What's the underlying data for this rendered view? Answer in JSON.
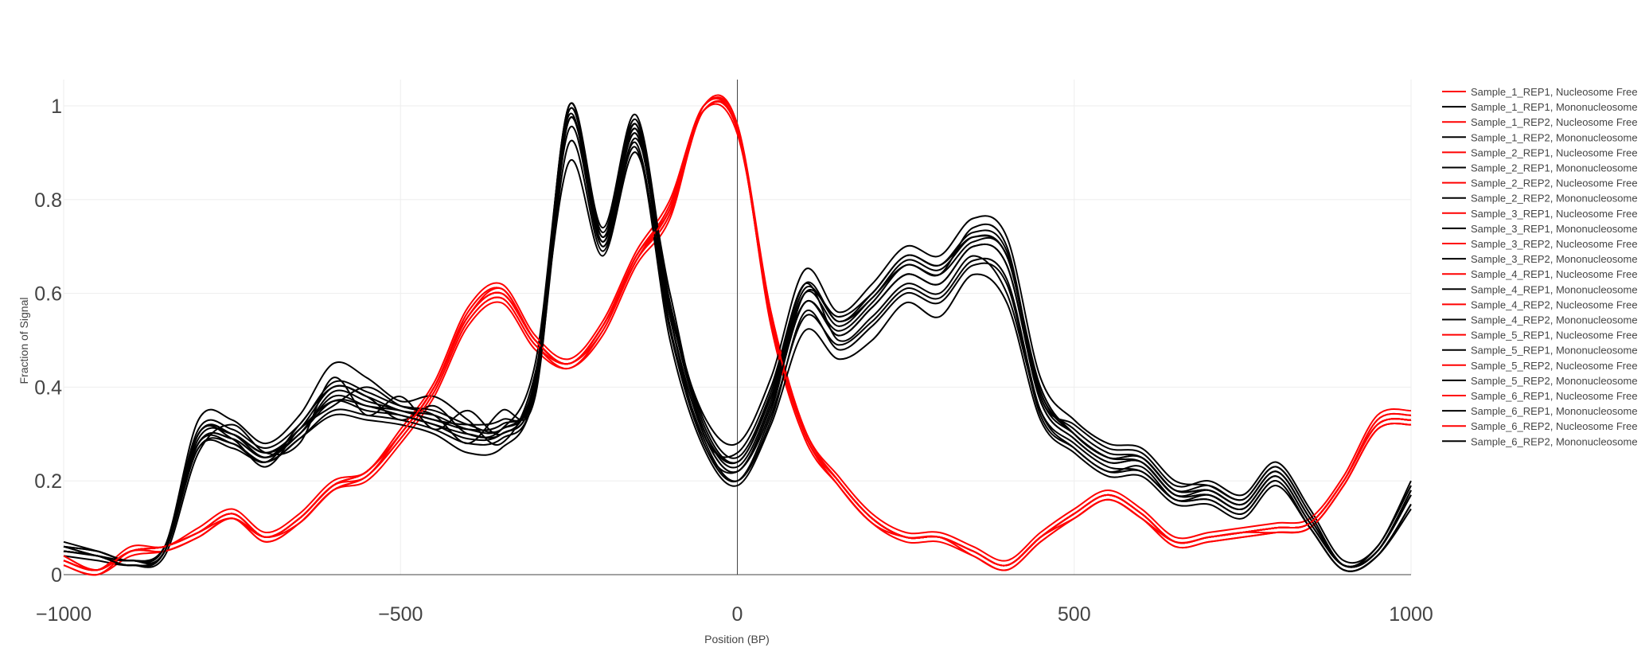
{
  "chart_data": {
    "type": "line",
    "xlabel": "Position (BP)",
    "ylabel": "Fraction of Signal",
    "xlim": [
      -1000,
      1000
    ],
    "ylim": [
      0,
      1.05
    ],
    "x_ticks": [
      -1000,
      -500,
      0,
      500,
      1000
    ],
    "x_tick_labels": [
      "−1000",
      "−500",
      "0",
      "500",
      "1000"
    ],
    "y_ticks": [
      0,
      0.2,
      0.4,
      0.6,
      0.8,
      1
    ],
    "y_tick_labels": [
      "0",
      "0.2",
      "0.4",
      "0.6",
      "0.8",
      "1"
    ],
    "grid": true,
    "zero_lines": true,
    "legend_position": "right",
    "colors": {
      "nucleosome_free": "#ff0000",
      "mononucleosome": "#000000",
      "grid": "#eeeeee",
      "zeroline": "#444444"
    },
    "x": [
      -1000,
      -950,
      -900,
      -850,
      -800,
      -750,
      -700,
      -650,
      -600,
      -550,
      -500,
      -450,
      -400,
      -350,
      -300,
      -250,
      -200,
      -150,
      -100,
      -50,
      0,
      50,
      100,
      150,
      200,
      250,
      300,
      350,
      400,
      450,
      500,
      550,
      600,
      650,
      700,
      750,
      800,
      850,
      900,
      950,
      1000
    ],
    "series": [
      {
        "name": "Sample_1_REP1, Nucleosome Free",
        "color": "#ff0000",
        "values": [
          0.03,
          0.01,
          0.05,
          0.06,
          0.09,
          0.13,
          0.08,
          0.12,
          0.19,
          0.22,
          0.3,
          0.4,
          0.55,
          0.6,
          0.5,
          0.45,
          0.53,
          0.68,
          0.78,
          0.99,
          0.95,
          0.55,
          0.3,
          0.2,
          0.12,
          0.08,
          0.08,
          0.05,
          0.02,
          0.08,
          0.13,
          0.17,
          0.13,
          0.07,
          0.08,
          0.09,
          0.1,
          0.11,
          0.2,
          0.32,
          0.33
        ]
      },
      {
        "name": "Sample_1_REP1, Mononucleosome",
        "color": "#000000",
        "values": [
          0.05,
          0.04,
          0.02,
          0.05,
          0.3,
          0.3,
          0.25,
          0.3,
          0.38,
          0.36,
          0.35,
          0.33,
          0.32,
          0.33,
          0.4,
          1.0,
          0.72,
          0.95,
          0.55,
          0.28,
          0.22,
          0.35,
          0.6,
          0.55,
          0.6,
          0.68,
          0.66,
          0.72,
          0.68,
          0.4,
          0.3,
          0.25,
          0.25,
          0.18,
          0.18,
          0.15,
          0.22,
          0.12,
          0.02,
          0.05,
          0.18
        ]
      },
      {
        "name": "Sample_1_REP2, Nucleosome Free",
        "color": "#ff0000",
        "values": [
          0.02,
          0.0,
          0.04,
          0.05,
          0.08,
          0.12,
          0.07,
          0.11,
          0.18,
          0.2,
          0.28,
          0.38,
          0.53,
          0.58,
          0.48,
          0.44,
          0.51,
          0.66,
          0.76,
          1.0,
          0.96,
          0.53,
          0.29,
          0.19,
          0.11,
          0.07,
          0.07,
          0.04,
          0.01,
          0.07,
          0.12,
          0.16,
          0.12,
          0.06,
          0.07,
          0.08,
          0.09,
          0.1,
          0.19,
          0.31,
          0.32
        ]
      },
      {
        "name": "Sample_1_REP2, Mononucleosome",
        "color": "#000000",
        "values": [
          0.06,
          0.05,
          0.03,
          0.06,
          0.28,
          0.28,
          0.24,
          0.32,
          0.4,
          0.38,
          0.33,
          0.36,
          0.3,
          0.31,
          0.45,
          0.98,
          0.7,
          0.93,
          0.6,
          0.3,
          0.26,
          0.4,
          0.62,
          0.5,
          0.55,
          0.62,
          0.6,
          0.68,
          0.6,
          0.35,
          0.28,
          0.23,
          0.22,
          0.16,
          0.16,
          0.13,
          0.2,
          0.1,
          0.01,
          0.04,
          0.15
        ]
      },
      {
        "name": "Sample_2_REP1, Nucleosome Free",
        "color": "#ff0000",
        "values": [
          0.04,
          0.01,
          0.05,
          0.06,
          0.09,
          0.13,
          0.08,
          0.12,
          0.19,
          0.22,
          0.3,
          0.4,
          0.56,
          0.61,
          0.5,
          0.45,
          0.53,
          0.67,
          0.79,
          0.99,
          0.94,
          0.56,
          0.31,
          0.2,
          0.12,
          0.08,
          0.08,
          0.05,
          0.02,
          0.08,
          0.13,
          0.17,
          0.13,
          0.07,
          0.08,
          0.09,
          0.1,
          0.11,
          0.2,
          0.33,
          0.34
        ]
      },
      {
        "name": "Sample_2_REP1, Mononucleosome",
        "color": "#000000",
        "values": [
          0.04,
          0.03,
          0.02,
          0.04,
          0.26,
          0.32,
          0.26,
          0.28,
          0.42,
          0.34,
          0.38,
          0.31,
          0.35,
          0.3,
          0.42,
          1.0,
          0.74,
          0.98,
          0.58,
          0.32,
          0.24,
          0.38,
          0.58,
          0.52,
          0.58,
          0.66,
          0.64,
          0.74,
          0.7,
          0.38,
          0.32,
          0.27,
          0.26,
          0.19,
          0.2,
          0.17,
          0.24,
          0.14,
          0.03,
          0.06,
          0.2
        ]
      },
      {
        "name": "Sample_2_REP2, Nucleosome Free",
        "color": "#ff0000",
        "values": [
          0.03,
          0.01,
          0.06,
          0.06,
          0.1,
          0.14,
          0.09,
          0.13,
          0.2,
          0.22,
          0.31,
          0.41,
          0.57,
          0.62,
          0.51,
          0.46,
          0.54,
          0.69,
          0.8,
          1.0,
          0.96,
          0.56,
          0.31,
          0.21,
          0.13,
          0.09,
          0.09,
          0.06,
          0.03,
          0.09,
          0.14,
          0.18,
          0.14,
          0.08,
          0.09,
          0.1,
          0.11,
          0.12,
          0.21,
          0.34,
          0.35
        ]
      },
      {
        "name": "Sample_2_REP2, Mononucleosome",
        "color": "#000000",
        "values": [
          0.05,
          0.04,
          0.03,
          0.05,
          0.3,
          0.29,
          0.23,
          0.31,
          0.36,
          0.4,
          0.36,
          0.34,
          0.28,
          0.35,
          0.38,
          0.97,
          0.71,
          0.96,
          0.53,
          0.29,
          0.2,
          0.33,
          0.56,
          0.48,
          0.53,
          0.6,
          0.58,
          0.66,
          0.62,
          0.34,
          0.27,
          0.22,
          0.23,
          0.16,
          0.17,
          0.14,
          0.21,
          0.11,
          0.02,
          0.05,
          0.17
        ]
      },
      {
        "name": "Sample_3_REP1, Nucleosome Free",
        "color": "#ff0000",
        "values": [
          0.03,
          0.01,
          0.05,
          0.05,
          0.08,
          0.12,
          0.08,
          0.11,
          0.18,
          0.21,
          0.29,
          0.39,
          0.54,
          0.59,
          0.49,
          0.45,
          0.52,
          0.67,
          0.77,
          0.99,
          0.95,
          0.54,
          0.3,
          0.2,
          0.12,
          0.08,
          0.08,
          0.05,
          0.02,
          0.08,
          0.12,
          0.16,
          0.12,
          0.07,
          0.08,
          0.09,
          0.09,
          0.1,
          0.19,
          0.31,
          0.32
        ]
      },
      {
        "name": "Sample_3_REP1, Mononucleosome",
        "color": "#000000",
        "values": [
          0.07,
          0.05,
          0.03,
          0.06,
          0.33,
          0.33,
          0.28,
          0.34,
          0.45,
          0.42,
          0.37,
          0.38,
          0.33,
          0.28,
          0.43,
          0.88,
          0.68,
          0.9,
          0.56,
          0.34,
          0.28,
          0.42,
          0.65,
          0.56,
          0.62,
          0.7,
          0.68,
          0.76,
          0.72,
          0.42,
          0.33,
          0.28,
          0.27,
          0.2,
          0.19,
          0.16,
          0.23,
          0.13,
          0.02,
          0.06,
          0.19
        ]
      },
      {
        "name": "Sample_3_REP2, Nucleosome Free",
        "color": "#ff0000",
        "values": [
          0.02,
          0.0,
          0.05,
          0.05,
          0.08,
          0.12,
          0.07,
          0.11,
          0.18,
          0.21,
          0.29,
          0.39,
          0.54,
          0.59,
          0.49,
          0.44,
          0.52,
          0.67,
          0.77,
          1.0,
          0.95,
          0.54,
          0.3,
          0.19,
          0.11,
          0.08,
          0.08,
          0.04,
          0.01,
          0.07,
          0.12,
          0.16,
          0.12,
          0.06,
          0.07,
          0.08,
          0.09,
          0.1,
          0.19,
          0.31,
          0.32
        ]
      },
      {
        "name": "Sample_3_REP2, Mononucleosome",
        "color": "#000000",
        "values": [
          0.05,
          0.04,
          0.02,
          0.05,
          0.27,
          0.27,
          0.24,
          0.29,
          0.34,
          0.33,
          0.32,
          0.3,
          0.26,
          0.27,
          0.39,
          0.92,
          0.69,
          0.91,
          0.5,
          0.27,
          0.19,
          0.32,
          0.52,
          0.46,
          0.5,
          0.58,
          0.55,
          0.64,
          0.58,
          0.33,
          0.26,
          0.21,
          0.21,
          0.15,
          0.15,
          0.12,
          0.19,
          0.1,
          0.01,
          0.04,
          0.14
        ]
      },
      {
        "name": "Sample_4_REP1, Nucleosome Free",
        "color": "#ff0000",
        "values": [
          0.04,
          0.01,
          0.05,
          0.06,
          0.09,
          0.13,
          0.08,
          0.12,
          0.19,
          0.22,
          0.3,
          0.4,
          0.55,
          0.6,
          0.5,
          0.45,
          0.53,
          0.68,
          0.78,
          0.99,
          0.95,
          0.55,
          0.3,
          0.2,
          0.12,
          0.08,
          0.08,
          0.05,
          0.02,
          0.08,
          0.13,
          0.17,
          0.13,
          0.07,
          0.08,
          0.09,
          0.1,
          0.11,
          0.2,
          0.32,
          0.33
        ]
      },
      {
        "name": "Sample_4_REP1, Mononucleosome",
        "color": "#000000",
        "values": [
          0.06,
          0.04,
          0.03,
          0.05,
          0.29,
          0.3,
          0.26,
          0.3,
          0.39,
          0.37,
          0.35,
          0.33,
          0.31,
          0.32,
          0.41,
          0.99,
          0.72,
          0.95,
          0.57,
          0.31,
          0.23,
          0.37,
          0.6,
          0.53,
          0.59,
          0.66,
          0.64,
          0.71,
          0.68,
          0.38,
          0.3,
          0.25,
          0.24,
          0.17,
          0.18,
          0.15,
          0.22,
          0.12,
          0.02,
          0.05,
          0.18
        ]
      },
      {
        "name": "Sample_4_REP2, Nucleosome Free",
        "color": "#ff0000",
        "values": [
          0.03,
          0.01,
          0.05,
          0.06,
          0.09,
          0.13,
          0.08,
          0.12,
          0.19,
          0.22,
          0.3,
          0.4,
          0.56,
          0.61,
          0.5,
          0.45,
          0.53,
          0.68,
          0.79,
          1.0,
          0.95,
          0.55,
          0.3,
          0.2,
          0.12,
          0.08,
          0.08,
          0.05,
          0.02,
          0.08,
          0.13,
          0.17,
          0.13,
          0.07,
          0.08,
          0.09,
          0.1,
          0.11,
          0.2,
          0.33,
          0.34
        ]
      },
      {
        "name": "Sample_4_REP2, Mononucleosome",
        "color": "#000000",
        "values": [
          0.05,
          0.04,
          0.02,
          0.05,
          0.28,
          0.29,
          0.25,
          0.31,
          0.37,
          0.35,
          0.34,
          0.32,
          0.29,
          0.3,
          0.4,
          0.97,
          0.71,
          0.94,
          0.55,
          0.3,
          0.22,
          0.36,
          0.58,
          0.51,
          0.57,
          0.64,
          0.62,
          0.7,
          0.66,
          0.37,
          0.29,
          0.24,
          0.24,
          0.17,
          0.17,
          0.14,
          0.21,
          0.11,
          0.02,
          0.05,
          0.17
        ]
      },
      {
        "name": "Sample_5_REP1, Nucleosome Free",
        "color": "#ff0000",
        "values": [
          0.03,
          0.01,
          0.05,
          0.06,
          0.09,
          0.12,
          0.08,
          0.12,
          0.19,
          0.21,
          0.3,
          0.4,
          0.55,
          0.6,
          0.5,
          0.45,
          0.53,
          0.67,
          0.78,
          0.99,
          0.95,
          0.55,
          0.3,
          0.2,
          0.12,
          0.08,
          0.08,
          0.05,
          0.02,
          0.08,
          0.13,
          0.17,
          0.13,
          0.07,
          0.08,
          0.09,
          0.1,
          0.11,
          0.2,
          0.32,
          0.33
        ]
      },
      {
        "name": "Sample_5_REP1, Mononucleosome",
        "color": "#000000",
        "values": [
          0.06,
          0.05,
          0.03,
          0.06,
          0.31,
          0.31,
          0.27,
          0.32,
          0.41,
          0.39,
          0.36,
          0.35,
          0.32,
          0.31,
          0.42,
          1.0,
          0.73,
          0.97,
          0.58,
          0.33,
          0.25,
          0.39,
          0.62,
          0.54,
          0.6,
          0.68,
          0.66,
          0.73,
          0.69,
          0.39,
          0.31,
          0.26,
          0.25,
          0.18,
          0.19,
          0.16,
          0.23,
          0.13,
          0.02,
          0.06,
          0.19
        ]
      },
      {
        "name": "Sample_5_REP2, Nucleosome Free",
        "color": "#ff0000",
        "values": [
          0.03,
          0.01,
          0.05,
          0.06,
          0.09,
          0.13,
          0.08,
          0.12,
          0.19,
          0.22,
          0.3,
          0.4,
          0.55,
          0.6,
          0.5,
          0.45,
          0.53,
          0.68,
          0.78,
          1.0,
          0.95,
          0.55,
          0.3,
          0.2,
          0.12,
          0.08,
          0.08,
          0.05,
          0.02,
          0.08,
          0.13,
          0.17,
          0.13,
          0.07,
          0.08,
          0.09,
          0.1,
          0.11,
          0.2,
          0.32,
          0.33
        ]
      },
      {
        "name": "Sample_5_REP2, Mononucleosome",
        "color": "#000000",
        "values": [
          0.05,
          0.04,
          0.02,
          0.05,
          0.27,
          0.28,
          0.24,
          0.29,
          0.35,
          0.34,
          0.33,
          0.31,
          0.28,
          0.29,
          0.39,
          0.95,
          0.7,
          0.92,
          0.52,
          0.28,
          0.2,
          0.34,
          0.55,
          0.49,
          0.54,
          0.61,
          0.59,
          0.67,
          0.63,
          0.35,
          0.27,
          0.22,
          0.22,
          0.16,
          0.16,
          0.13,
          0.2,
          0.1,
          0.01,
          0.04,
          0.15
        ]
      },
      {
        "name": "Sample_6_REP1, Nucleosome Free",
        "color": "#ff0000",
        "values": [
          0.03,
          0.01,
          0.05,
          0.06,
          0.09,
          0.13,
          0.08,
          0.12,
          0.19,
          0.22,
          0.3,
          0.4,
          0.55,
          0.61,
          0.5,
          0.45,
          0.53,
          0.68,
          0.78,
          0.99,
          0.95,
          0.55,
          0.3,
          0.2,
          0.12,
          0.08,
          0.08,
          0.05,
          0.02,
          0.08,
          0.13,
          0.17,
          0.13,
          0.07,
          0.08,
          0.09,
          0.1,
          0.11,
          0.2,
          0.32,
          0.33
        ]
      },
      {
        "name": "Sample_6_REP1, Mononucleosome",
        "color": "#000000",
        "values": [
          0.06,
          0.04,
          0.03,
          0.05,
          0.3,
          0.3,
          0.26,
          0.31,
          0.4,
          0.38,
          0.35,
          0.34,
          0.31,
          0.31,
          0.41,
          0.99,
          0.72,
          0.96,
          0.57,
          0.31,
          0.24,
          0.38,
          0.61,
          0.54,
          0.59,
          0.67,
          0.65,
          0.72,
          0.68,
          0.39,
          0.3,
          0.25,
          0.25,
          0.18,
          0.18,
          0.15,
          0.22,
          0.12,
          0.02,
          0.05,
          0.18
        ]
      },
      {
        "name": "Sample_6_REP2, Nucleosome Free",
        "color": "#ff0000",
        "values": [
          0.03,
          0.01,
          0.05,
          0.06,
          0.09,
          0.13,
          0.08,
          0.12,
          0.19,
          0.22,
          0.3,
          0.4,
          0.55,
          0.6,
          0.5,
          0.45,
          0.53,
          0.68,
          0.78,
          1.0,
          0.95,
          0.55,
          0.3,
          0.2,
          0.12,
          0.08,
          0.08,
          0.05,
          0.02,
          0.08,
          0.13,
          0.17,
          0.13,
          0.07,
          0.08,
          0.09,
          0.1,
          0.11,
          0.2,
          0.32,
          0.33
        ]
      },
      {
        "name": "Sample_6_REP2, Mononucleosome",
        "color": "#000000",
        "values": [
          0.05,
          0.04,
          0.02,
          0.05,
          0.28,
          0.29,
          0.25,
          0.3,
          0.37,
          0.36,
          0.34,
          0.32,
          0.3,
          0.3,
          0.4,
          0.97,
          0.71,
          0.94,
          0.55,
          0.3,
          0.22,
          0.36,
          0.58,
          0.51,
          0.57,
          0.64,
          0.62,
          0.7,
          0.66,
          0.37,
          0.29,
          0.24,
          0.24,
          0.17,
          0.17,
          0.14,
          0.21,
          0.11,
          0.02,
          0.05,
          0.17
        ]
      }
    ]
  }
}
